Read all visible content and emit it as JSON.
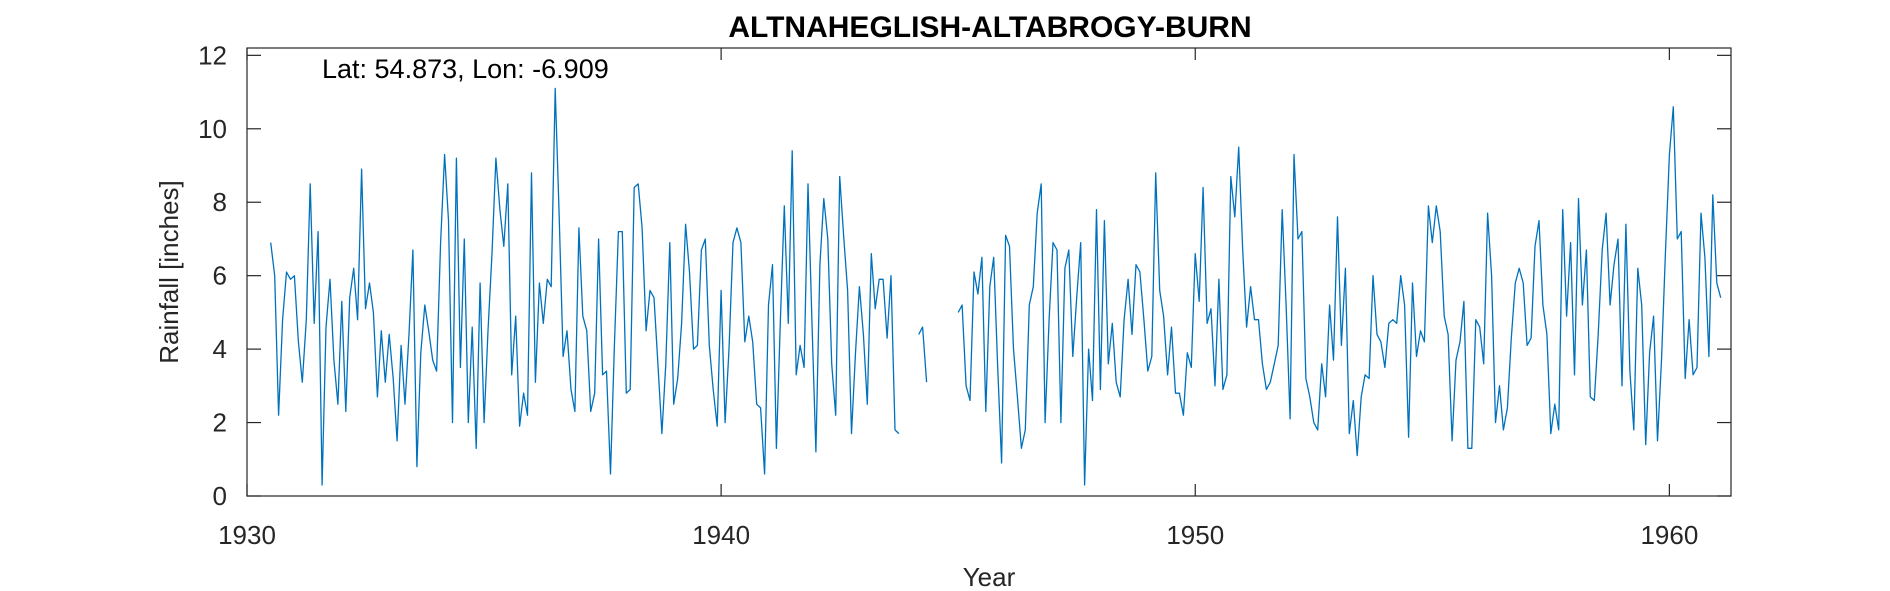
{
  "chart_data": {
    "type": "line",
    "title": "ALTNAHEGLISH-ALTABROGY-BURN",
    "xlabel": "Year",
    "ylabel": "Rainfall [inches]",
    "annotation": "Lat: 54.873, Lon: -6.909",
    "xlim": [
      1930,
      1961.3
    ],
    "ylim": [
      0,
      12.2
    ],
    "xticks": [
      1930,
      1940,
      1950,
      1960
    ],
    "yticks": [
      0,
      2,
      4,
      6,
      8,
      10,
      12
    ],
    "grid": false,
    "line_color": "#0072BD",
    "series": [
      {
        "x_start": 1930.5,
        "x_step": 0.0833333,
        "values": [
          6.9,
          6.0,
          2.2,
          4.8,
          6.1,
          5.9,
          6.0,
          4.2,
          3.1,
          4.8,
          8.5,
          4.7,
          7.2,
          0.3,
          4.6,
          5.9,
          3.7,
          2.5,
          5.3,
          2.3,
          5.4,
          6.2,
          4.8,
          8.9,
          5.1,
          5.8,
          5.0,
          2.7,
          4.5,
          3.1,
          4.4,
          3.2,
          1.5,
          4.1,
          2.5,
          4.4,
          6.7,
          0.8,
          3.9,
          5.2,
          4.5,
          3.7,
          3.4,
          6.9,
          9.3,
          7.5,
          2.0,
          9.2,
          3.5,
          7.0,
          2.0,
          4.6,
          1.3,
          5.8,
          2.0,
          4.5,
          6.6,
          9.2,
          7.8,
          6.8,
          8.5,
          3.3,
          4.9,
          1.9,
          2.8,
          2.2,
          8.8,
          3.1,
          5.8,
          4.7,
          5.9,
          5.7,
          11.1,
          7.7,
          3.8,
          4.5,
          2.9,
          2.3,
          7.3,
          4.9,
          4.5,
          2.3,
          2.8,
          7.0,
          3.3,
          3.4,
          0.6,
          4.1,
          7.2,
          7.2,
          2.8,
          2.9,
          8.4,
          8.5,
          7.3,
          4.5,
          5.6,
          5.4,
          3.6,
          1.7,
          3.6,
          6.9,
          2.5,
          3.2,
          4.7,
          7.4,
          6.1,
          4.0,
          4.1,
          6.7,
          7.0,
          4.1,
          2.9,
          1.9,
          5.6,
          2.0,
          4.0,
          6.9,
          7.3,
          6.9,
          4.2,
          4.9,
          4.2,
          2.5,
          2.4,
          0.6,
          5.2,
          6.3,
          1.3,
          4.8,
          7.9,
          4.7,
          9.4,
          3.3,
          4.1,
          3.5,
          8.5,
          4.7,
          1.2,
          6.3,
          8.1,
          7.0,
          3.6,
          2.2,
          8.7,
          7.1,
          5.6,
          1.7,
          3.9,
          5.7,
          4.4,
          2.5,
          6.6,
          5.1,
          5.9,
          5.9,
          4.3,
          6.0,
          1.8,
          1.7,
          null,
          null,
          null,
          null,
          4.4,
          4.6,
          3.1,
          null,
          null,
          null,
          null,
          null,
          null,
          null,
          5.0,
          5.2,
          3.0,
          2.6,
          6.1,
          5.5,
          6.5,
          2.3,
          5.7,
          6.5,
          3.5,
          0.9,
          7.1,
          6.8,
          4.0,
          2.7,
          1.3,
          1.8,
          5.2,
          5.7,
          7.7,
          8.5,
          2.0,
          4.8,
          6.9,
          6.7,
          2.0,
          6.2,
          6.7,
          3.8,
          5.4,
          6.9,
          0.3,
          4.0,
          2.6,
          7.8,
          2.9,
          7.5,
          3.6,
          4.7,
          3.1,
          2.7,
          4.8,
          5.9,
          4.4,
          6.3,
          6.1,
          4.8,
          3.4,
          3.8,
          8.8,
          5.6,
          4.9,
          3.3,
          4.6,
          2.8,
          2.8,
          2.2,
          3.9,
          3.5,
          6.6,
          5.3,
          8.4,
          4.7,
          5.1,
          3.0,
          5.9,
          2.9,
          3.3,
          8.7,
          7.6,
          9.5,
          6.7,
          4.6,
          5.7,
          4.8,
          4.8,
          3.6,
          2.9,
          3.1,
          3.6,
          4.1,
          7.8,
          5.2,
          2.1,
          9.3,
          7.0,
          7.2,
          3.2,
          2.7,
          2.0,
          1.8,
          3.6,
          2.7,
          5.2,
          3.7,
          7.6,
          4.1,
          6.2,
          1.7,
          2.6,
          1.1,
          2.7,
          3.3,
          3.2,
          6.0,
          4.4,
          4.2,
          3.5,
          4.7,
          4.8,
          4.7,
          6.0,
          5.2,
          1.6,
          5.8,
          3.8,
          4.5,
          4.2,
          7.9,
          6.9,
          7.9,
          7.2,
          4.9,
          4.4,
          1.5,
          3.7,
          4.2,
          5.3,
          1.3,
          1.3,
          4.8,
          4.6,
          3.6,
          7.7,
          6.0,
          2.0,
          3.0,
          1.8,
          2.4,
          4.3,
          5.8,
          6.2,
          5.8,
          4.1,
          4.3,
          6.8,
          7.5,
          5.2,
          4.4,
          1.7,
          2.5,
          1.8,
          7.8,
          4.9,
          6.9,
          3.3,
          8.1,
          5.2,
          6.7,
          2.7,
          2.6,
          4.4,
          6.7,
          7.7,
          5.2,
          6.3,
          7.0,
          3.0,
          7.4,
          3.4,
          1.8,
          6.2,
          5.2,
          1.4,
          3.9,
          4.9,
          1.5,
          3.7,
          6.6,
          9.3,
          10.6,
          7.0,
          7.2,
          3.2,
          4.8,
          3.3,
          3.5,
          7.7,
          6.5,
          3.8,
          8.2,
          5.8,
          5.4
        ]
      }
    ]
  }
}
